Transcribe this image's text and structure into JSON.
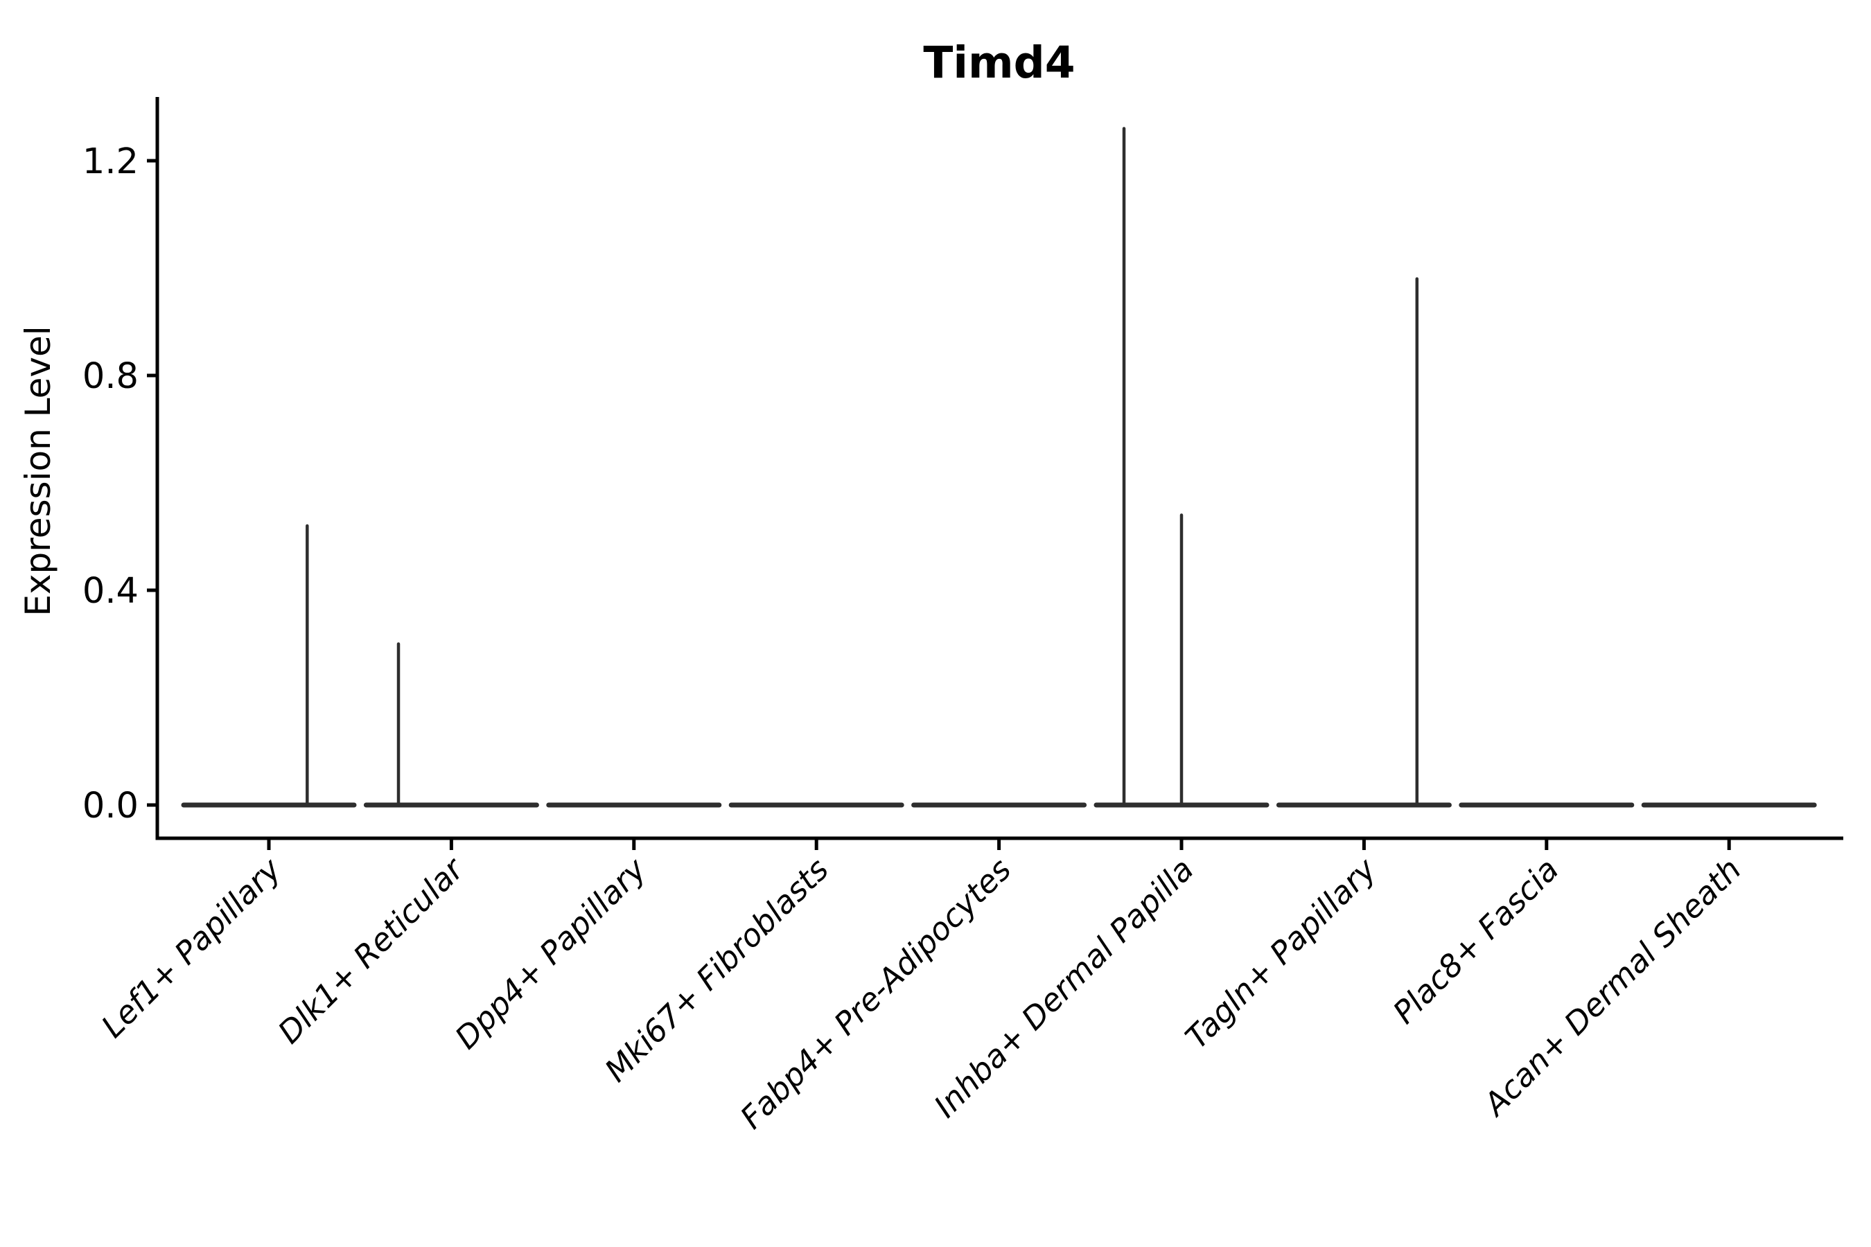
{
  "figure": {
    "title": "Timd4",
    "ylabel": "Expression Level"
  },
  "chart_data": {
    "type": "violin",
    "title": "Timd4",
    "xlabel": "",
    "ylabel": "Expression Level",
    "categories": [
      "Lef1+ Papillary",
      "Dlk1+ Reticular",
      "Dpp4+ Papillary",
      "Mki67+ Fibroblasts",
      "Fabp4+ Pre-Adipocytes",
      "Inhba+ Dermal Papilla",
      "Tagln+ Papillary",
      "Plac8+ Fascia",
      "Acan+ Dermal Sheath"
    ],
    "yticks": [
      0.0,
      0.4,
      0.8,
      1.2
    ],
    "ylim": [
      -0.06,
      1.33
    ],
    "grid": false,
    "legend": null,
    "x_tick_label_rotation_deg": 45,
    "x_tick_label_style": "italic",
    "spike_offset_unit": "fraction_of_category_slot",
    "series": [
      {
        "name": "Lef1+ Papillary",
        "baseline": 0.0,
        "spikes": [
          {
            "offset": 0.21,
            "value": 0.52
          }
        ]
      },
      {
        "name": "Dlk1+ Reticular",
        "baseline": 0.0,
        "spikes": [
          {
            "offset": -0.29,
            "value": 0.3
          }
        ]
      },
      {
        "name": "Dpp4+ Papillary",
        "baseline": 0.0,
        "spikes": []
      },
      {
        "name": "Mki67+ Fibroblasts",
        "baseline": 0.0,
        "spikes": []
      },
      {
        "name": "Fabp4+ Pre-Adipocytes",
        "baseline": 0.0,
        "spikes": []
      },
      {
        "name": "Inhba+ Dermal Papilla",
        "baseline": 0.0,
        "spikes": [
          {
            "offset": -0.315,
            "value": 1.26
          },
          {
            "offset": 0.0,
            "value": 0.54
          }
        ]
      },
      {
        "name": "Tagln+ Papillary",
        "baseline": 0.0,
        "spikes": [
          {
            "offset": 0.29,
            "value": 0.98
          }
        ]
      },
      {
        "name": "Plac8+ Fascia",
        "baseline": 0.0,
        "spikes": []
      },
      {
        "name": "Acan+ Dermal Sheath",
        "baseline": 0.0,
        "spikes": []
      }
    ],
    "colors": {
      "violin_stroke": "#2e2e2e",
      "axis": "#000000",
      "text": "#000000",
      "background": "#ffffff"
    }
  }
}
